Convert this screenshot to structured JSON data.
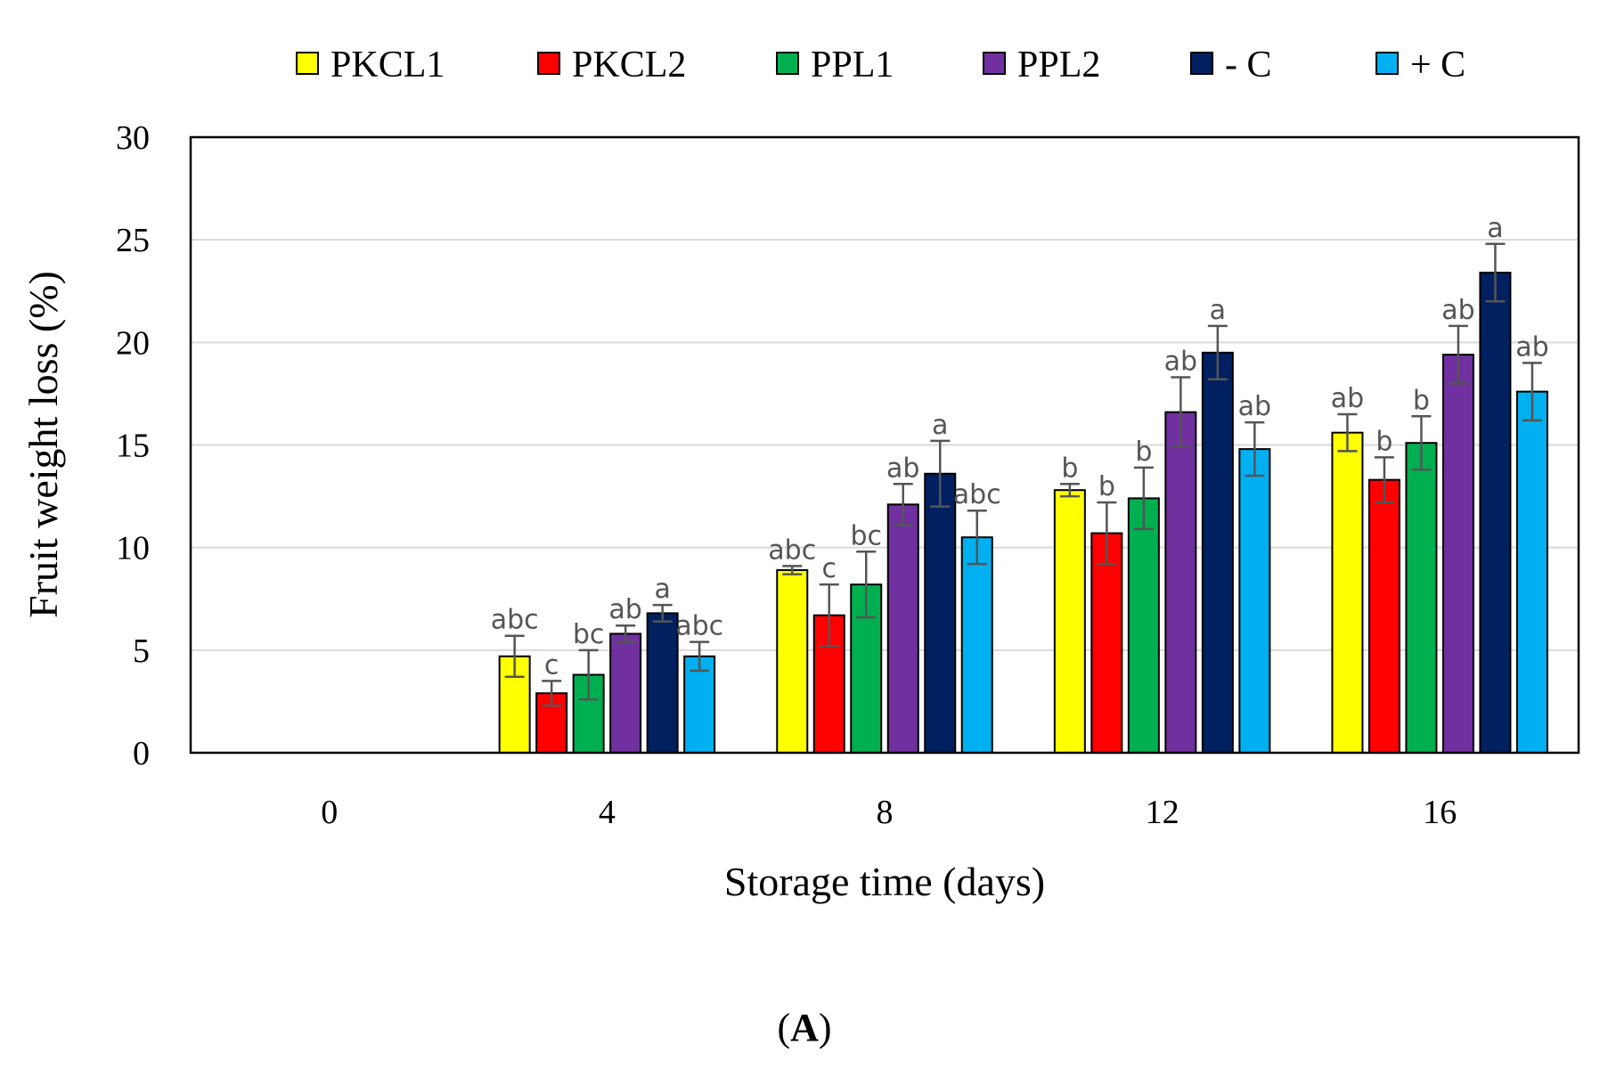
{
  "chart_data": {
    "type": "bar",
    "title": "",
    "xlabel": "Storage time (days)",
    "ylabel": "Fruit weight loss (%)",
    "ylim": [
      0,
      30
    ],
    "yticks": [
      "0",
      "5",
      "10",
      "15",
      "20",
      "25",
      "30"
    ],
    "grid": true,
    "legend_position": "top",
    "categories": [
      "0",
      "4",
      "8",
      "12",
      "16"
    ],
    "series": [
      {
        "name": "PKCL1",
        "color": "#ffff00",
        "values": [
          0,
          4.7,
          8.9,
          12.8,
          15.6
        ],
        "errors": [
          0,
          1.0,
          0.2,
          0.3,
          0.9
        ],
        "letters": [
          "",
          "abc",
          "abc",
          "b",
          "ab"
        ]
      },
      {
        "name": "PKCL2",
        "color": "#ff0000",
        "values": [
          0,
          2.9,
          6.7,
          10.7,
          13.3
        ],
        "errors": [
          0,
          0.6,
          1.5,
          1.5,
          1.1
        ],
        "letters": [
          "",
          "c",
          "c",
          "b",
          "b"
        ]
      },
      {
        "name": "PPL1",
        "color": "#00b050",
        "values": [
          0,
          3.8,
          8.2,
          12.4,
          15.1
        ],
        "errors": [
          0,
          1.2,
          1.6,
          1.5,
          1.3
        ],
        "letters": [
          "",
          "bc",
          "bc",
          "b",
          "b"
        ]
      },
      {
        "name": "PPL2",
        "color": "#7030a0",
        "values": [
          0,
          5.8,
          12.1,
          16.6,
          19.4
        ],
        "errors": [
          0,
          0.4,
          1.0,
          1.7,
          1.4
        ],
        "letters": [
          "",
          "ab",
          "ab",
          "ab",
          "ab"
        ]
      },
      {
        "name": "- C",
        "color": "#002060",
        "values": [
          0,
          6.8,
          13.6,
          19.5,
          23.4
        ],
        "errors": [
          0,
          0.4,
          1.6,
          1.3,
          1.4
        ],
        "letters": [
          "",
          "a",
          "a",
          "a",
          "a"
        ]
      },
      {
        "name": "+ C",
        "color": "#00b0f0",
        "values": [
          0,
          4.7,
          10.5,
          14.8,
          17.6
        ],
        "errors": [
          0,
          0.7,
          1.3,
          1.3,
          1.4
        ],
        "letters": [
          "",
          "abc",
          "abc",
          "ab",
          "ab"
        ]
      }
    ]
  },
  "panel_label": {
    "open": "(",
    "letter": "A",
    "close": ")"
  }
}
